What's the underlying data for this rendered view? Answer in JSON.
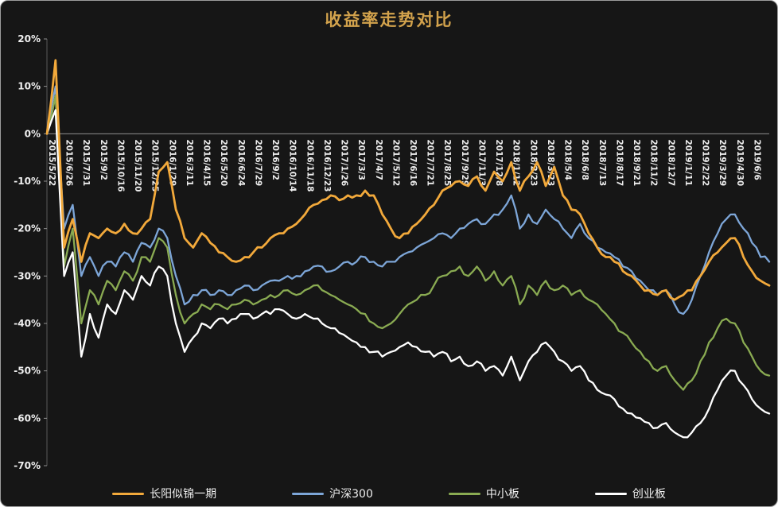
{
  "colors": {
    "background": "#161616",
    "title": "#D2A24C",
    "axis_line": "#8f8f8f",
    "left_axis_line": "#5a5a5a",
    "tick_label": "#efefef"
  },
  "chart_data": {
    "type": "line",
    "title": "收益率走势对比",
    "xlabel": "",
    "ylabel": "",
    "ylim": [
      -70,
      20
    ],
    "ytick_step": 10,
    "y_tick_labels": [
      "20%",
      "10%",
      "0%",
      "-10%",
      "-20%",
      "-30%",
      "-40%",
      "-50%",
      "-60%",
      "-70%"
    ],
    "grid": false,
    "legend_position": "bottom",
    "points_per_label": 2,
    "x_labels": [
      "2015/5/22",
      "2015/6/26",
      "2015/7/31",
      "2015/9/2",
      "2015/10/16",
      "2015/11/20",
      "2015/12/25",
      "2016/1/29",
      "2016/3/11",
      "2016/4/15",
      "2016/5/20",
      "2016/6/24",
      "2016/7/29",
      "2016/9/2",
      "2016/10/14",
      "2016/11/18",
      "2016/12/23",
      "2017/1/26",
      "2017/3/3",
      "2017/4/7",
      "2017/5/12",
      "2017/6/16",
      "2017/7/21",
      "2017/8/25",
      "2017/9/29",
      "2017/11/3",
      "2017/12/8",
      "2018/1/12",
      "2018/2/23",
      "2018/3/23",
      "2018/5/4",
      "2018/6/8",
      "2018/7/13",
      "2018/8/17",
      "2018/9/21",
      "2018/11/2",
      "2018/12/7",
      "2019/1/11",
      "2019/2/22",
      "2019/3/29",
      "2019/4/30",
      "2019/6/6"
    ],
    "series": [
      {
        "name": "长阳似锦一期",
        "color": "#F2A93B",
        "values": [
          0,
          15.5,
          -24,
          -18,
          -27,
          -21,
          -22,
          -20,
          -21,
          -19,
          -21,
          -20,
          -18,
          -8,
          -6,
          -16,
          -22,
          -24,
          -21,
          -23,
          -25,
          -26,
          -27,
          -26,
          -25,
          -24,
          -22,
          -21,
          -20,
          -19,
          -17,
          -15,
          -14,
          -13,
          -14,
          -13,
          -13,
          -12,
          -13,
          -17,
          -20,
          -22,
          -21,
          -19,
          -17,
          -15,
          -12,
          -11,
          -10,
          -11,
          -9,
          -12,
          -8,
          -10,
          -6,
          -12,
          -9,
          -6,
          -11,
          -7,
          -13,
          -16,
          -17,
          -21,
          -24,
          -26,
          -27,
          -29,
          -30,
          -32,
          -33,
          -34,
          -33,
          -35,
          -34,
          -33,
          -30,
          -27,
          -25,
          -23,
          -22,
          -26,
          -29,
          -31,
          -32
        ]
      },
      {
        "name": "沪深300",
        "color": "#7DA6D8",
        "values": [
          0,
          10,
          -20,
          -15,
          -30,
          -26,
          -30,
          -27,
          -28,
          -25,
          -27,
          -23,
          -24,
          -20,
          -22,
          -30,
          -36,
          -34,
          -33,
          -34,
          -33,
          -34,
          -33,
          -32,
          -33,
          -32,
          -31,
          -31,
          -30,
          -30,
          -29,
          -28,
          -28,
          -29,
          -28,
          -27,
          -27,
          -26,
          -27,
          -28,
          -27,
          -26,
          -25,
          -24,
          -23,
          -22,
          -21,
          -22,
          -20,
          -19,
          -18,
          -19,
          -17,
          -16,
          -13,
          -20,
          -17,
          -19,
          -16,
          -18,
          -20,
          -22,
          -19,
          -22,
          -24,
          -25,
          -26,
          -28,
          -29,
          -31,
          -33,
          -34,
          -33,
          -36,
          -38,
          -35,
          -30,
          -25,
          -21,
          -18,
          -17,
          -20,
          -23,
          -26,
          -27
        ]
      },
      {
        "name": "中小板",
        "color": "#8AAB52",
        "values": [
          0,
          8,
          -28,
          -20,
          -40,
          -33,
          -36,
          -31,
          -33,
          -29,
          -31,
          -26,
          -27,
          -22,
          -24,
          -34,
          -40,
          -38,
          -36,
          -37,
          -36,
          -37,
          -36,
          -35,
          -36,
          -35,
          -34,
          -34,
          -33,
          -34,
          -33,
          -32,
          -33,
          -34,
          -35,
          -36,
          -37,
          -38,
          -40,
          -41,
          -40,
          -38,
          -36,
          -35,
          -34,
          -32,
          -30,
          -29,
          -28,
          -30,
          -28,
          -31,
          -29,
          -32,
          -30,
          -36,
          -32,
          -34,
          -31,
          -33,
          -32,
          -34,
          -33,
          -35,
          -36,
          -38,
          -40,
          -42,
          -44,
          -46,
          -48,
          -50,
          -49,
          -52,
          -54,
          -52,
          -48,
          -44,
          -41,
          -39,
          -40,
          -44,
          -47,
          -50,
          -51
        ]
      },
      {
        "name": "创业板",
        "color": "#FFFFFF",
        "values": [
          0,
          5,
          -30,
          -25,
          -47,
          -38,
          -43,
          -36,
          -38,
          -33,
          -35,
          -30,
          -32,
          -28,
          -30,
          -40,
          -46,
          -43,
          -40,
          -41,
          -39,
          -40,
          -39,
          -38,
          -39,
          -38,
          -38,
          -37,
          -38,
          -39,
          -38,
          -39,
          -40,
          -41,
          -42,
          -43,
          -44,
          -45,
          -46,
          -47,
          -46,
          -45,
          -44,
          -45,
          -46,
          -47,
          -46,
          -48,
          -47,
          -49,
          -48,
          -50,
          -49,
          -51,
          -47,
          -52,
          -48,
          -46,
          -44,
          -46,
          -48,
          -50,
          -49,
          -52,
          -54,
          -55,
          -56,
          -58,
          -59,
          -60,
          -61,
          -62,
          -61,
          -63,
          -64,
          -63,
          -61,
          -58,
          -54,
          -51,
          -50,
          -53,
          -56,
          -58,
          -59
        ]
      }
    ]
  }
}
